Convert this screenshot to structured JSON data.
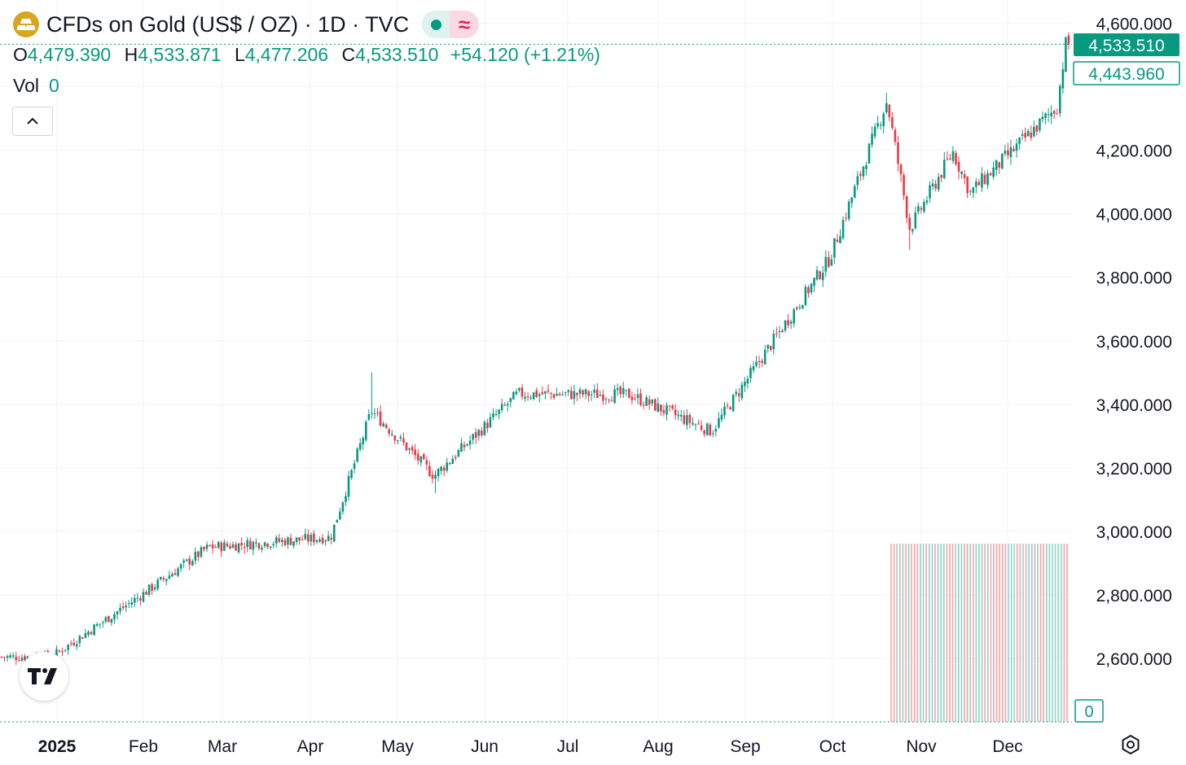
{
  "header": {
    "title": "CFDs on Gold (US$ / OZ) · 1D · TVC",
    "logo_icon": "gold-bars-icon",
    "market_status_icon": "market-open-dot-icon",
    "approx_icon_label": "≈"
  },
  "ohlc": {
    "o_label": "O",
    "o_value": "4,479.390",
    "h_label": "H",
    "h_value": "4,533.871",
    "l_label": "L",
    "l_value": "4,477.206",
    "c_label": "C",
    "c_value": "4,533.510",
    "change": "+54.120 (+1.21%)"
  },
  "volume": {
    "label": "Vol",
    "value": "0"
  },
  "price_axis": {
    "ticks": [
      "4,600.000",
      "4,200.000",
      "4,000.000",
      "3,800.000",
      "3,600.000",
      "3,400.000",
      "3,200.000",
      "3,000.000",
      "2,800.000",
      "2,600.000"
    ],
    "last_price_badge": "4,533.510",
    "crosshair_price_badge": "4,443.960",
    "volume_badge": "0"
  },
  "time_axis": {
    "labels": [
      "2025",
      "Feb",
      "Mar",
      "Apr",
      "May",
      "Jun",
      "Jul",
      "Aug",
      "Sep",
      "Oct",
      "Nov",
      "Dec"
    ]
  },
  "colors": {
    "up": "#089981",
    "down": "#f23645",
    "grid": "#f0f3fa",
    "text": "#131722",
    "logo": "#d9a521"
  },
  "chart_data": {
    "type": "candlestick",
    "title": "CFDs on Gold (US$ / OZ) · 1D · TVC",
    "timeframe": "1D",
    "ylim": [
      2400,
      4640
    ],
    "last_close": 4533.51,
    "grid": true,
    "monthly_closes": [
      {
        "month": "Dec 2024",
        "close": 2625
      },
      {
        "month": "Jan 2025",
        "close": 2798
      },
      {
        "month": "Feb 2025",
        "close": 2858
      },
      {
        "month": "Mar 2025",
        "close": 3124
      },
      {
        "month": "Apr 2025",
        "close": 3288
      },
      {
        "month": "May 2025",
        "close": 3289
      },
      {
        "month": "Jun 2025",
        "close": 3303
      },
      {
        "month": "Jul 2025",
        "close": 3290
      },
      {
        "month": "Aug 2025",
        "close": 3448
      },
      {
        "month": "Sep 2025",
        "close": 3859
      },
      {
        "month": "Oct 2025",
        "close": 4002
      },
      {
        "month": "Nov 2025",
        "close": 4240
      },
      {
        "month": "Dec 2025",
        "close": 4533.51
      }
    ],
    "key_points": [
      {
        "date": "Dec 30, 2024",
        "close": 2605
      },
      {
        "date": "Jan 31, 2025",
        "close": 2798
      },
      {
        "date": "Feb 24, 2025",
        "close": 2950
      },
      {
        "date": "Apr 8, 2025",
        "close": 2982
      },
      {
        "date": "Apr 22, 2025",
        "high": 3500,
        "close": 3380
      },
      {
        "date": "May 14, 2025",
        "low": 3121,
        "close": 3175
      },
      {
        "date": "Jun 13, 2025",
        "close": 3433
      },
      {
        "date": "Jul 22, 2025",
        "close": 3431
      },
      {
        "date": "Aug 20, 2025",
        "close": 3315
      },
      {
        "date": "Sep 30, 2025",
        "close": 3859
      },
      {
        "date": "Oct 20, 2025",
        "high": 4381,
        "close": 4356
      },
      {
        "date": "Oct 28, 2025",
        "low": 3886,
        "close": 3953
      },
      {
        "date": "Nov 12, 2025",
        "close": 4195
      },
      {
        "date": "Nov 18, 2025",
        "close": 4066
      },
      {
        "date": "Dec 19, 2025",
        "close": 4338
      },
      {
        "date": "Dec 22, 2025",
        "open": 4479.39,
        "high": 4533.871,
        "low": 4477.206,
        "close": 4533.51
      }
    ],
    "volume": {
      "label": "Vol",
      "value": 0
    }
  }
}
